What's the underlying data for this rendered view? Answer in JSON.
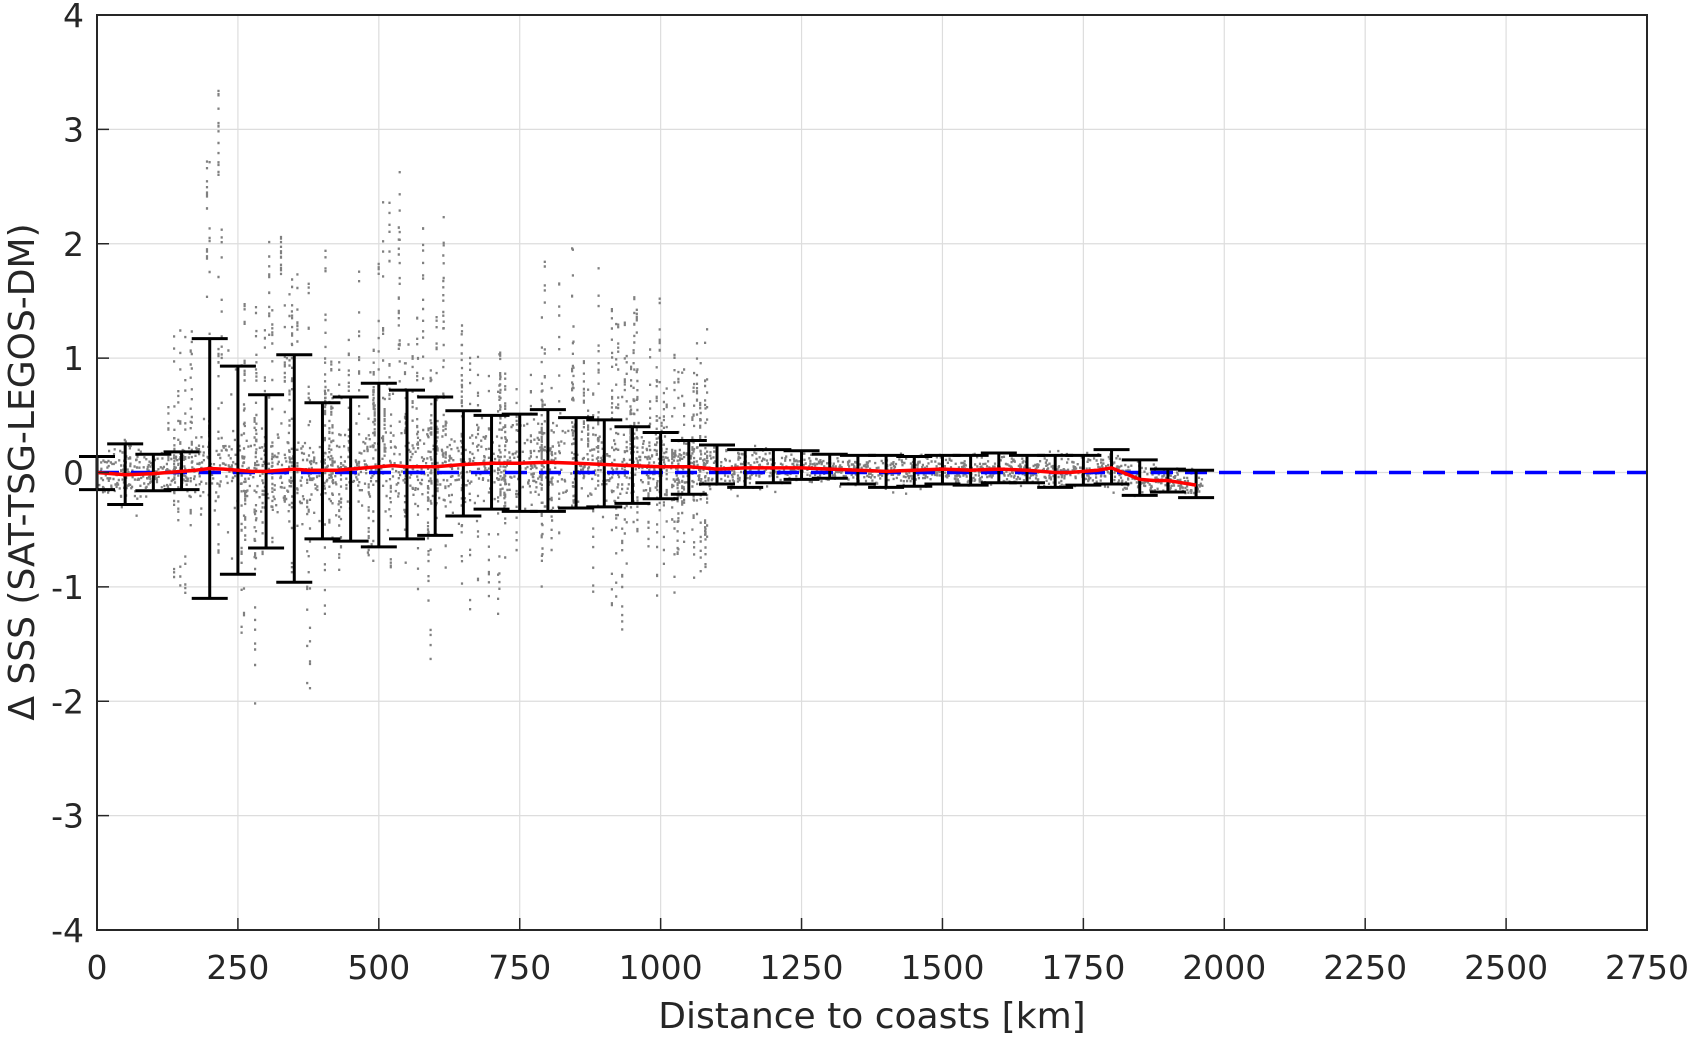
{
  "chart_data": {
    "type": "scatter",
    "xlabel": "Distance to coasts [km]",
    "ylabel": "Δ SSS (SAT-TSG-LEGOS-DM)",
    "xlim": [
      0,
      2750
    ],
    "ylim": [
      -4,
      4
    ],
    "x_ticks": [
      "0",
      "250",
      "500",
      "750",
      "1000",
      "1250",
      "1500",
      "1750",
      "2000",
      "2250",
      "2500",
      "2750"
    ],
    "y_ticks": [
      "-4",
      "-3",
      "-2",
      "-1",
      "0",
      "1",
      "2",
      "3",
      "4"
    ],
    "grid": true,
    "scatter_color": "#808080",
    "mean_color": "#ff0000",
    "errorbar_color": "#000000",
    "reference_color": "#0000ff",
    "reference_line": {
      "y": 0,
      "style": "dashed"
    },
    "errorbars": [
      {
        "x": 0,
        "y": 0.0,
        "low": -0.15,
        "high": 0.14
      },
      {
        "x": 50,
        "y": -0.02,
        "low": -0.28,
        "high": 0.25
      },
      {
        "x": 100,
        "y": -0.01,
        "low": -0.16,
        "high": 0.16
      },
      {
        "x": 150,
        "y": 0.01,
        "low": -0.15,
        "high": 0.18
      },
      {
        "x": 200,
        "y": 0.03,
        "low": -1.1,
        "high": 1.17
      },
      {
        "x": 250,
        "y": 0.02,
        "low": -0.89,
        "high": 0.93
      },
      {
        "x": 300,
        "y": 0.01,
        "low": -0.66,
        "high": 0.68
      },
      {
        "x": 350,
        "y": 0.03,
        "low": -0.96,
        "high": 1.03
      },
      {
        "x": 400,
        "y": 0.02,
        "low": -0.58,
        "high": 0.61
      },
      {
        "x": 450,
        "y": 0.03,
        "low": -0.6,
        "high": 0.66
      },
      {
        "x": 500,
        "y": 0.05,
        "low": -0.65,
        "high": 0.78
      },
      {
        "x": 550,
        "y": 0.05,
        "low": -0.58,
        "high": 0.72
      },
      {
        "x": 600,
        "y": 0.05,
        "low": -0.55,
        "high": 0.66
      },
      {
        "x": 650,
        "y": 0.07,
        "low": -0.38,
        "high": 0.54
      },
      {
        "x": 700,
        "y": 0.08,
        "low": -0.32,
        "high": 0.5
      },
      {
        "x": 750,
        "y": 0.08,
        "low": -0.34,
        "high": 0.51
      },
      {
        "x": 800,
        "y": 0.09,
        "low": -0.34,
        "high": 0.55
      },
      {
        "x": 850,
        "y": 0.08,
        "low": -0.31,
        "high": 0.48
      },
      {
        "x": 900,
        "y": 0.07,
        "low": -0.3,
        "high": 0.46
      },
      {
        "x": 950,
        "y": 0.06,
        "low": -0.27,
        "high": 0.4
      },
      {
        "x": 1000,
        "y": 0.05,
        "low": -0.23,
        "high": 0.35
      },
      {
        "x": 1050,
        "y": 0.05,
        "low": -0.19,
        "high": 0.28
      },
      {
        "x": 1100,
        "y": 0.03,
        "low": -0.1,
        "high": 0.24
      },
      {
        "x": 1150,
        "y": 0.04,
        "low": -0.13,
        "high": 0.2
      },
      {
        "x": 1200,
        "y": 0.04,
        "low": -0.09,
        "high": 0.2
      },
      {
        "x": 1250,
        "y": 0.04,
        "low": -0.06,
        "high": 0.19
      },
      {
        "x": 1300,
        "y": 0.03,
        "low": -0.05,
        "high": 0.16
      },
      {
        "x": 1350,
        "y": 0.02,
        "low": -0.1,
        "high": 0.15
      },
      {
        "x": 1400,
        "y": 0.01,
        "low": -0.13,
        "high": 0.15
      },
      {
        "x": 1450,
        "y": 0.02,
        "low": -0.12,
        "high": 0.14
      },
      {
        "x": 1500,
        "y": 0.03,
        "low": -0.1,
        "high": 0.15
      },
      {
        "x": 1550,
        "y": 0.02,
        "low": -0.11,
        "high": 0.15
      },
      {
        "x": 1600,
        "y": 0.03,
        "low": -0.09,
        "high": 0.17
      },
      {
        "x": 1650,
        "y": 0.02,
        "low": -0.09,
        "high": 0.15
      },
      {
        "x": 1700,
        "y": 0.0,
        "low": -0.13,
        "high": 0.15
      },
      {
        "x": 1750,
        "y": 0.01,
        "low": -0.11,
        "high": 0.15
      },
      {
        "x": 1800,
        "y": 0.04,
        "low": -0.1,
        "high": 0.2
      },
      {
        "x": 1850,
        "y": -0.06,
        "low": -0.2,
        "high": 0.11
      },
      {
        "x": 1900,
        "y": -0.07,
        "low": -0.17,
        "high": 0.03
      },
      {
        "x": 1950,
        "y": -0.11,
        "low": -0.22,
        "high": 0.02
      }
    ],
    "mean_curve": {
      "x": [
        0,
        25,
        50,
        75,
        100,
        125,
        150,
        175,
        200,
        225,
        250,
        275,
        300,
        325,
        350,
        375,
        400,
        425,
        450,
        475,
        500,
        525,
        550,
        575,
        600,
        625,
        650,
        675,
        700,
        725,
        750,
        775,
        800,
        825,
        850,
        875,
        900,
        925,
        950,
        975,
        1000,
        1025,
        1050,
        1075,
        1100,
        1125,
        1150,
        1175,
        1200,
        1225,
        1250,
        1275,
        1300,
        1325,
        1350,
        1375,
        1400,
        1425,
        1450,
        1475,
        1500,
        1525,
        1550,
        1575,
        1600,
        1625,
        1650,
        1675,
        1700,
        1725,
        1750,
        1775,
        1800,
        1825,
        1850,
        1875,
        1900,
        1925,
        1950
      ],
      "y": [
        0.0,
        -0.01,
        -0.02,
        -0.015,
        -0.01,
        0.0,
        0.01,
        0.02,
        0.035,
        0.03,
        0.02,
        0.01,
        0.01,
        0.02,
        0.03,
        0.02,
        0.02,
        0.02,
        0.03,
        0.04,
        0.05,
        0.06,
        0.05,
        0.05,
        0.05,
        0.06,
        0.07,
        0.075,
        0.08,
        0.08,
        0.08,
        0.085,
        0.09,
        0.085,
        0.08,
        0.075,
        0.07,
        0.065,
        0.06,
        0.055,
        0.05,
        0.05,
        0.05,
        0.04,
        0.03,
        0.035,
        0.04,
        0.04,
        0.04,
        0.04,
        0.04,
        0.035,
        0.03,
        0.025,
        0.02,
        0.015,
        0.01,
        0.015,
        0.02,
        0.025,
        0.03,
        0.025,
        0.02,
        0.025,
        0.03,
        0.025,
        0.02,
        0.01,
        0.0,
        0.0,
        0.01,
        0.02,
        0.04,
        -0.01,
        -0.06,
        -0.07,
        -0.07,
        -0.09,
        -0.11
      ]
    }
  }
}
